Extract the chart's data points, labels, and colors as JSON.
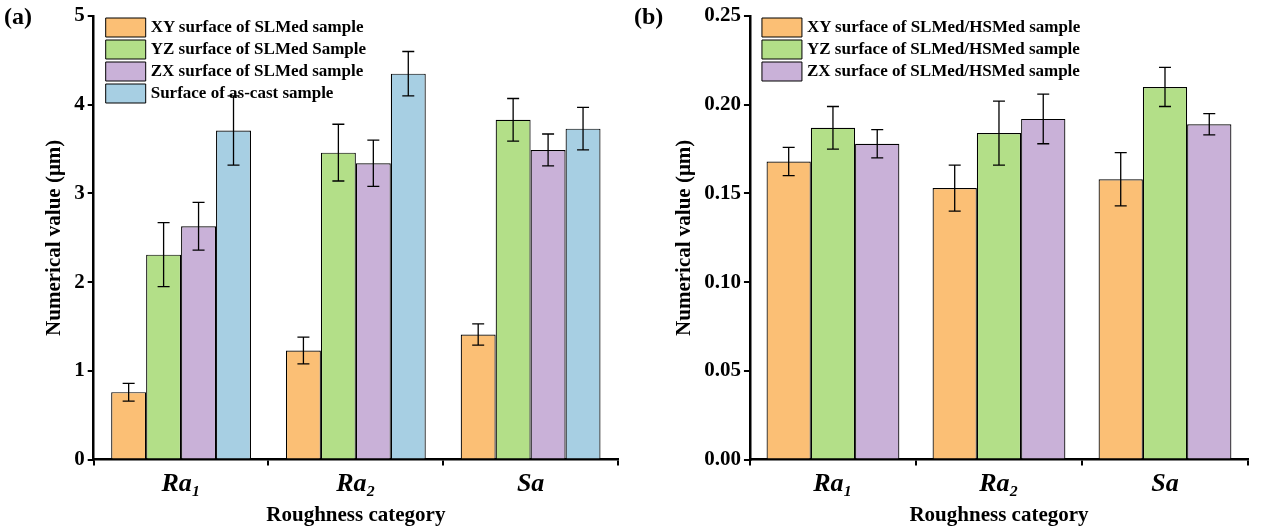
{
  "chart_data": [
    {
      "type": "bar",
      "title": "(a)",
      "xlabel": "Roughness category",
      "ylabel": "Numerical value (μm)",
      "categories": [
        "Ra₁",
        "Ra₂",
        "Sa"
      ],
      "ylim": [
        0,
        5
      ],
      "yticks": [
        0,
        1,
        2,
        3,
        4,
        5
      ],
      "grid": false,
      "legend": "top left",
      "series": [
        {
          "name": "XY surface of SLMed sample",
          "color": "#fbbf75",
          "values": [
            0.76,
            1.23,
            1.41
          ],
          "errors": [
            0.1,
            0.15,
            0.12
          ]
        },
        {
          "name": "YZ surface of SLMed Sample",
          "color": "#b3df88",
          "values": [
            2.31,
            3.46,
            3.83
          ],
          "errors": [
            0.36,
            0.32,
            0.24
          ]
        },
        {
          "name": "ZX surface of SLMed sample",
          "color": "#c9b1d8",
          "values": [
            2.63,
            3.34,
            3.49
          ],
          "errors": [
            0.27,
            0.26,
            0.18
          ]
        },
        {
          "name": "Surface of as-cast sample",
          "color": "#a7cfe3",
          "values": [
            3.71,
            4.35,
            3.73
          ],
          "errors": [
            0.39,
            0.25,
            0.24
          ]
        }
      ]
    },
    {
      "type": "bar",
      "title": "(b)",
      "xlabel": "Roughness category",
      "ylabel": "Numerical value (μm)",
      "categories": [
        "Ra₁",
        "Ra₂",
        "Sa"
      ],
      "ylim": [
        0,
        0.25
      ],
      "yticks": [
        {
          "value": 0,
          "label": "0.00"
        },
        {
          "value": 0.05,
          "label": "0.05"
        },
        {
          "value": 0.1,
          "label": "0.10"
        },
        {
          "value": 0.15,
          "label": "0.15"
        },
        {
          "value": 0.2,
          "label": "0.20"
        },
        {
          "value": 0.25,
          "label": "0.25"
        }
      ],
      "grid": false,
      "legend": "top left",
      "series": [
        {
          "name": "XY surface of SLMed/HSMed sample",
          "color": "#fbbf75",
          "values": [
            0.168,
            0.153,
            0.158
          ],
          "errors": [
            0.008,
            0.013,
            0.015
          ]
        },
        {
          "name": "YZ surface of SLMed/HSMed sample",
          "color": "#b3df88",
          "values": [
            0.187,
            0.184,
            0.21
          ],
          "errors": [
            0.012,
            0.018,
            0.011
          ]
        },
        {
          "name": "ZX surface of SLMed/HSMed sample",
          "color": "#c9b1d8",
          "values": [
            0.178,
            0.192,
            0.189
          ],
          "errors": [
            0.008,
            0.014,
            0.006
          ]
        }
      ]
    }
  ]
}
